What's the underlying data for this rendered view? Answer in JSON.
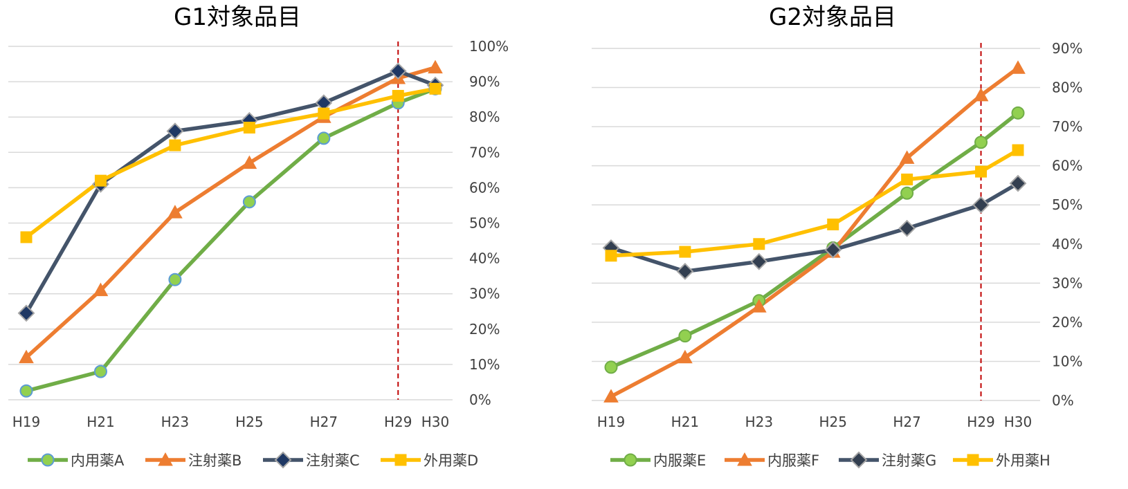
{
  "chart_data": [
    {
      "type": "line",
      "title": "G1対象品目",
      "categories": [
        "H19",
        "H21",
        "H23",
        "H25",
        "H27",
        "H29",
        "H30"
      ],
      "x": [
        19,
        21,
        23,
        25,
        27,
        29,
        30
      ],
      "y_ticks": [
        "0%",
        "10%",
        "20%",
        "30%",
        "40%",
        "50%",
        "60%",
        "70%",
        "80%",
        "90%",
        "100%"
      ],
      "ylim": [
        0,
        100
      ],
      "y_axis_side": "right",
      "grid": true,
      "legend_position": "bottom",
      "reference_line": {
        "x": 29,
        "style": "dashed",
        "color": "#c00000"
      },
      "series": [
        {
          "name": "内用薬A",
          "color": "#70ad47",
          "marker": "circle",
          "marker_color": "#92d050",
          "marker_stroke": "#5b9bd5",
          "values": [
            2.5,
            8,
            34,
            56,
            74,
            84,
            88
          ]
        },
        {
          "name": "注射薬B",
          "color": "#ed7d31",
          "marker": "triangle",
          "marker_color": "#ed7d31",
          "marker_stroke": "#ed7d31",
          "values": [
            12,
            31,
            53,
            67,
            80,
            91,
            94
          ]
        },
        {
          "name": "注射薬C",
          "color": "#44546a",
          "marker": "diamond",
          "marker_color": "#1f3864",
          "marker_stroke": "#a5a5a5",
          "values": [
            24.5,
            61,
            76,
            79,
            84,
            93,
            89
          ]
        },
        {
          "name": "外用薬D",
          "color": "#ffc000",
          "marker": "square",
          "marker_color": "#ffc000",
          "marker_stroke": "#ffc000",
          "values": [
            46,
            62,
            72,
            77,
            81,
            86,
            88
          ]
        }
      ]
    },
    {
      "type": "line",
      "title": "G2対象品目",
      "categories": [
        "H19",
        "H21",
        "H23",
        "H25",
        "H27",
        "H29",
        "H30"
      ],
      "x": [
        19,
        21,
        23,
        25,
        27,
        29,
        30
      ],
      "y_ticks": [
        "0%",
        "10%",
        "20%",
        "30%",
        "40%",
        "50%",
        "60%",
        "70%",
        "80%",
        "90%"
      ],
      "ylim": [
        0,
        90
      ],
      "y_axis_side": "right",
      "grid": true,
      "legend_position": "bottom",
      "reference_line": {
        "x": 29,
        "style": "dashed",
        "color": "#c00000"
      },
      "series": [
        {
          "name": "内服薬E",
          "color": "#70ad47",
          "marker": "circle",
          "marker_color": "#92d050",
          "marker_stroke": "#70ad47",
          "values": [
            8.5,
            16.5,
            25.5,
            39,
            53,
            66,
            73.5
          ]
        },
        {
          "name": "内服薬F",
          "color": "#ed7d31",
          "marker": "triangle",
          "marker_color": "#ed7d31",
          "marker_stroke": "#ed7d31",
          "values": [
            1,
            11,
            24,
            38,
            62,
            78,
            85
          ]
        },
        {
          "name": "注射薬G",
          "color": "#44546a",
          "marker": "diamond",
          "marker_color": "#333f50",
          "marker_stroke": "#a5a5a5",
          "values": [
            39,
            33,
            35.5,
            38.5,
            44,
            50,
            55.5
          ]
        },
        {
          "name": "外用薬H",
          "color": "#ffc000",
          "marker": "square",
          "marker_color": "#ffc000",
          "marker_stroke": "#ffc000",
          "values": [
            37,
            38,
            40,
            45,
            56.5,
            58.5,
            64
          ]
        }
      ]
    }
  ]
}
